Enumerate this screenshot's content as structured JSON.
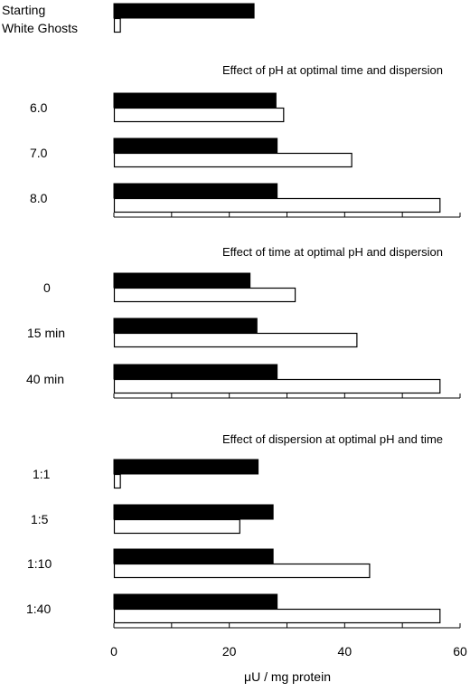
{
  "chart_data": {
    "type": "bar",
    "orientation": "horizontal",
    "xlabel": "μU / mg protein",
    "xlim": [
      0,
      60
    ],
    "x_ticks": [
      0,
      20,
      40,
      60
    ],
    "grid": false,
    "legend": "none",
    "series_colors": {
      "filled": "#000000",
      "open": "#ffffff"
    },
    "panels": [
      {
        "title": "",
        "categories": [
          "Starting White Ghosts"
        ],
        "category_lines": [
          "Starting",
          "White Ghosts"
        ],
        "filled_values": [
          24.3
        ],
        "open_values": [
          1.2
        ]
      },
      {
        "title": "Effect of pH at optimal time and dispersion",
        "categories": [
          "6.0",
          "7.0",
          "8.0"
        ],
        "filled_values": [
          28.1,
          28.3,
          28.3
        ],
        "open_values": [
          29.5,
          41.3,
          56.6
        ]
      },
      {
        "title": "Effect of time at optimal pH and dispersion",
        "categories": [
          "0",
          "15 min",
          "40 min"
        ],
        "filled_values": [
          23.6,
          24.8,
          28.3
        ],
        "open_values": [
          31.5,
          42.2,
          56.6
        ]
      },
      {
        "title": "Effect of dispersion at optimal pH and time",
        "categories": [
          "1:1",
          "1:5",
          "1:10",
          "1:40"
        ],
        "filled_values": [
          25.0,
          27.6,
          27.6,
          28.3
        ],
        "open_values": [
          1.2,
          21.9,
          44.4,
          56.6
        ]
      }
    ]
  }
}
